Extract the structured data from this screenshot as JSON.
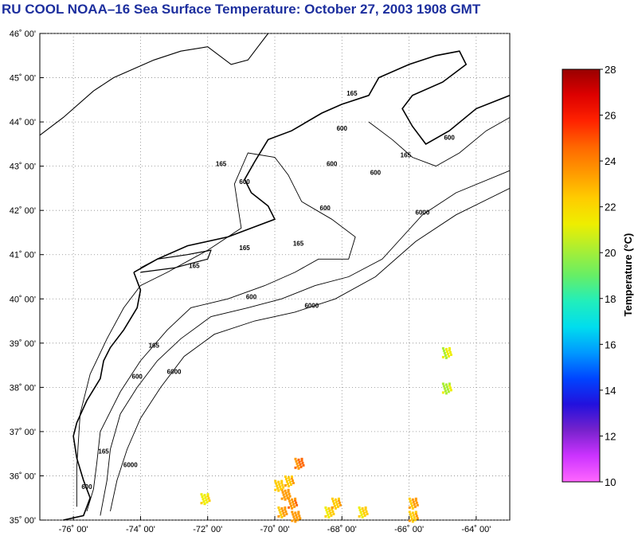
{
  "header": {
    "title": "RU COOL  NOAA–16  Sea Surface Temperature:  October 27, 2003 1908 GMT"
  },
  "map": {
    "lon_range": [
      -77,
      -63
    ],
    "lat_range": [
      35,
      46
    ],
    "lon_ticks": [
      {
        "value": -76,
        "label": "-76˚ 00'"
      },
      {
        "value": -74,
        "label": "-74˚ 00'"
      },
      {
        "value": -72,
        "label": "-72˚ 00'"
      },
      {
        "value": -70,
        "label": "-70˚ 00'"
      },
      {
        "value": -68,
        "label": "-68˚ 00'"
      },
      {
        "value": -66,
        "label": "-66˚ 00'"
      },
      {
        "value": -64,
        "label": "-64˚ 00'"
      }
    ],
    "lat_ticks": [
      {
        "value": 46,
        "label": "46˚ 00'"
      },
      {
        "value": 45,
        "label": "45˚ 00'"
      },
      {
        "value": 44,
        "label": "44˚ 00'"
      },
      {
        "value": 43,
        "label": "43˚ 00'"
      },
      {
        "value": 42,
        "label": "42˚ 00'"
      },
      {
        "value": 41,
        "label": "41˚ 00'"
      },
      {
        "value": 40,
        "label": "40˚ 00'"
      },
      {
        "value": 39,
        "label": "39˚ 00'"
      },
      {
        "value": 38,
        "label": "38˚ 00'"
      },
      {
        "value": 37,
        "label": "37˚ 00'"
      },
      {
        "value": 36,
        "label": "36˚ 00'"
      },
      {
        "value": 35,
        "label": "35˚ 00'"
      }
    ],
    "grid": "dotted",
    "coastline": [
      [
        -77.0,
        43.7
      ],
      [
        -76.3,
        44.1
      ],
      [
        -75.4,
        44.7
      ],
      [
        -74.8,
        45.0
      ],
      [
        -73.6,
        45.4
      ],
      [
        -72.8,
        45.6
      ],
      [
        -72.0,
        45.7
      ],
      [
        -71.3,
        45.3
      ],
      [
        -70.8,
        45.4
      ],
      [
        -70.5,
        45.7
      ],
      [
        -70.2,
        46.0
      ]
    ],
    "gulf_coast": [
      [
        -74.2,
        40.6
      ],
      [
        -73.5,
        40.9
      ],
      [
        -72.6,
        41.2
      ],
      [
        -71.4,
        41.4
      ],
      [
        -70.7,
        41.6
      ],
      [
        -70.0,
        41.8
      ],
      [
        -70.2,
        42.1
      ],
      [
        -70.7,
        42.4
      ],
      [
        -70.9,
        42.7
      ],
      [
        -70.6,
        43.1
      ],
      [
        -70.2,
        43.6
      ],
      [
        -69.5,
        43.8
      ],
      [
        -68.6,
        44.2
      ],
      [
        -68.0,
        44.4
      ],
      [
        -67.2,
        44.6
      ],
      [
        -66.9,
        45.0
      ],
      [
        -66.0,
        45.3
      ],
      [
        -65.2,
        45.5
      ],
      [
        -64.5,
        45.6
      ],
      [
        -64.3,
        45.3
      ],
      [
        -65.0,
        44.9
      ],
      [
        -65.9,
        44.6
      ],
      [
        -66.2,
        44.3
      ],
      [
        -65.9,
        43.9
      ],
      [
        -65.5,
        43.5
      ],
      [
        -64.8,
        43.8
      ],
      [
        -64.0,
        44.3
      ],
      [
        -63.0,
        44.6
      ]
    ],
    "mid_atlantic_coast": [
      [
        -74.2,
        40.6
      ],
      [
        -74.0,
        40.2
      ],
      [
        -74.1,
        39.8
      ],
      [
        -74.5,
        39.3
      ],
      [
        -74.9,
        38.9
      ],
      [
        -75.1,
        38.6
      ],
      [
        -75.2,
        38.2
      ],
      [
        -75.6,
        37.7
      ],
      [
        -75.9,
        37.2
      ],
      [
        -76.0,
        36.9
      ],
      [
        -75.9,
        36.4
      ],
      [
        -75.7,
        35.9
      ],
      [
        -75.5,
        35.5
      ],
      [
        -75.7,
        35.1
      ],
      [
        -76.3,
        35.0
      ]
    ],
    "long_island": [
      [
        -74.0,
        40.6
      ],
      [
        -73.0,
        40.7
      ],
      [
        -72.0,
        40.9
      ],
      [
        -71.9,
        41.1
      ],
      [
        -72.6,
        41.0
      ],
      [
        -73.5,
        40.9
      ],
      [
        -74.0,
        40.7
      ]
    ],
    "contours": [
      {
        "label": "165",
        "points": [
          [
            -75.6,
            35.2
          ],
          [
            -75.4,
            35.7
          ],
          [
            -75.3,
            36.3
          ],
          [
            -75.2,
            37.0
          ],
          [
            -74.6,
            37.9
          ],
          [
            -74.0,
            38.6
          ],
          [
            -73.2,
            39.3
          ],
          [
            -72.5,
            39.8
          ],
          [
            -71.4,
            40.0
          ],
          [
            -70.3,
            40.3
          ],
          [
            -69.4,
            40.6
          ],
          [
            -68.7,
            40.9
          ],
          [
            -67.8,
            40.9
          ],
          [
            -67.6,
            41.4
          ],
          [
            -68.3,
            41.8
          ],
          [
            -69.2,
            42.2
          ],
          [
            -69.6,
            42.8
          ],
          [
            -70.0,
            43.2
          ],
          [
            -70.8,
            43.3
          ],
          [
            -71.2,
            42.6
          ],
          [
            -71.1,
            42.1
          ],
          [
            -71.0,
            41.6
          ],
          [
            -72.0,
            41.1
          ],
          [
            -73.2,
            40.6
          ],
          [
            -74.0,
            40.3
          ],
          [
            -74.5,
            39.8
          ],
          [
            -75.0,
            39.1
          ],
          [
            -75.5,
            38.3
          ],
          [
            -75.8,
            37.4
          ],
          [
            -75.9,
            36.2
          ],
          [
            -75.9,
            35.3
          ]
        ]
      },
      {
        "label": "600",
        "points": [
          [
            -75.2,
            35.1
          ],
          [
            -75.0,
            35.9
          ],
          [
            -74.9,
            36.6
          ],
          [
            -74.6,
            37.4
          ],
          [
            -74.1,
            38.0
          ],
          [
            -73.5,
            38.6
          ],
          [
            -72.8,
            39.1
          ],
          [
            -71.9,
            39.6
          ],
          [
            -70.8,
            39.8
          ],
          [
            -69.8,
            40.0
          ],
          [
            -68.8,
            40.3
          ],
          [
            -67.8,
            40.5
          ],
          [
            -66.8,
            40.9
          ],
          [
            -65.6,
            41.9
          ],
          [
            -64.6,
            42.4
          ],
          [
            -63.0,
            42.9
          ]
        ]
      },
      {
        "label": "6000",
        "points": [
          [
            -74.9,
            35.2
          ],
          [
            -74.7,
            35.9
          ],
          [
            -74.4,
            36.6
          ],
          [
            -74.0,
            37.3
          ],
          [
            -73.4,
            38.0
          ],
          [
            -72.7,
            38.7
          ],
          [
            -71.8,
            39.2
          ],
          [
            -70.6,
            39.5
          ],
          [
            -69.4,
            39.7
          ],
          [
            -68.2,
            40.0
          ],
          [
            -67.0,
            40.5
          ],
          [
            -65.8,
            41.3
          ],
          [
            -64.6,
            41.9
          ],
          [
            -63.0,
            42.5
          ]
        ]
      },
      {
        "label": "165",
        "points": [
          [
            -67.2,
            44.0
          ],
          [
            -66.5,
            43.6
          ],
          [
            -65.9,
            43.2
          ],
          [
            -65.2,
            43.0
          ],
          [
            -64.5,
            43.3
          ],
          [
            -63.7,
            43.8
          ],
          [
            -63.0,
            44.1
          ]
        ]
      }
    ],
    "contour_labels": [
      {
        "label": "165",
        "lon": -72.4,
        "lat": 40.7
      },
      {
        "label": "165",
        "lon": -70.9,
        "lat": 41.1
      },
      {
        "label": "165",
        "lon": -73.6,
        "lat": 38.9
      },
      {
        "label": "165",
        "lon": -71.6,
        "lat": 43.0
      },
      {
        "label": "165",
        "lon": -75.1,
        "lat": 36.5
      },
      {
        "label": "165",
        "lon": -67.7,
        "lat": 44.6
      },
      {
        "label": "165",
        "lon": -66.1,
        "lat": 43.2
      },
      {
        "label": "165",
        "lon": -69.3,
        "lat": 41.2
      },
      {
        "label": "600",
        "lon": -70.9,
        "lat": 42.6
      },
      {
        "label": "600",
        "lon": -68.5,
        "lat": 42.0
      },
      {
        "label": "600",
        "lon": -68.0,
        "lat": 43.8
      },
      {
        "label": "600",
        "lon": -68.3,
        "lat": 43.0
      },
      {
        "label": "600",
        "lon": -67.0,
        "lat": 42.8
      },
      {
        "label": "600",
        "lon": -64.8,
        "lat": 43.6
      },
      {
        "label": "600",
        "lon": -70.7,
        "lat": 40.0
      },
      {
        "label": "600",
        "lon": -74.1,
        "lat": 38.2
      },
      {
        "label": "600",
        "lon": -75.6,
        "lat": 35.7
      },
      {
        "label": "6000",
        "lon": -68.9,
        "lat": 39.8
      },
      {
        "label": "6000",
        "lon": -65.6,
        "lat": 41.9
      },
      {
        "label": "6000",
        "lon": -73.0,
        "lat": 38.3
      },
      {
        "label": "6000",
        "lon": -74.3,
        "lat": 36.2
      }
    ],
    "sst_patches": [
      {
        "lon": -69.7,
        "lat": 35.6,
        "temp": 23.5
      },
      {
        "lon": -69.5,
        "lat": 35.4,
        "temp": 23.8
      },
      {
        "lon": -69.8,
        "lat": 35.2,
        "temp": 23.0
      },
      {
        "lon": -69.4,
        "lat": 35.1,
        "temp": 23.6
      },
      {
        "lon": -69.6,
        "lat": 35.9,
        "temp": 22.8
      },
      {
        "lon": -69.3,
        "lat": 36.3,
        "temp": 24.3
      },
      {
        "lon": -69.9,
        "lat": 35.8,
        "temp": 22.5
      },
      {
        "lon": -68.4,
        "lat": 35.2,
        "temp": 22.2
      },
      {
        "lon": -68.2,
        "lat": 35.4,
        "temp": 22.7
      },
      {
        "lon": -67.4,
        "lat": 35.2,
        "temp": 22.0
      },
      {
        "lon": -65.9,
        "lat": 35.4,
        "temp": 23.3
      },
      {
        "lon": -65.9,
        "lat": 35.1,
        "temp": 22.8
      },
      {
        "lon": -64.9,
        "lat": 38.0,
        "temp": 20.4
      },
      {
        "lon": -64.9,
        "lat": 38.8,
        "temp": 20.8
      },
      {
        "lon": -72.1,
        "lat": 35.5,
        "temp": 21.8
      }
    ]
  },
  "colorbar": {
    "title": "Temperature (°C)",
    "min": 10,
    "max": 28,
    "ticks": [
      "28",
      "26",
      "24",
      "22",
      "20",
      "18",
      "16",
      "14",
      "12",
      "10"
    ],
    "colors": [
      "#ff66ff",
      "#cc33ff",
      "#7722cc",
      "#2211dd",
      "#0044ff",
      "#0099ff",
      "#00ddee",
      "#22eebb",
      "#66ee66",
      "#aaee33",
      "#eeee00",
      "#ffcc00",
      "#ff9900",
      "#ff6600",
      "#ff2200",
      "#dd0000",
      "#990000"
    ]
  }
}
